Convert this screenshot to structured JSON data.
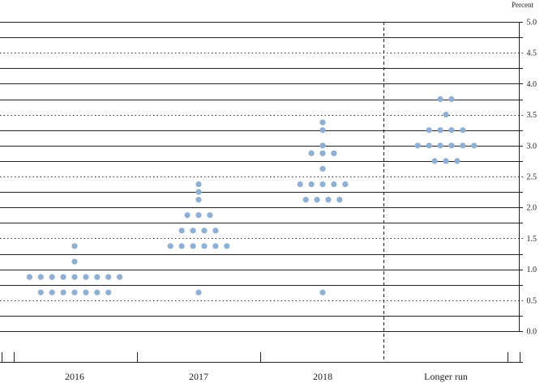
{
  "chart_data": {
    "type": "scatter",
    "title": "",
    "unit_label": "Percent",
    "categories": [
      "2016",
      "2017",
      "2018",
      "Longer run"
    ],
    "ylim": [
      0,
      5.0
    ],
    "yticks": [
      "0.0",
      "0.5",
      "1.0",
      "1.5",
      "2.0",
      "2.5",
      "3.0",
      "3.5",
      "4.0",
      "4.5",
      "5.0"
    ],
    "grid_minor_step": 0.25,
    "grid": true,
    "dot_color": "#8fb0d3",
    "series": [
      {
        "category": "2016",
        "points": [
          {
            "y": 0.625,
            "count": 7
          },
          {
            "y": 0.875,
            "count": 9
          },
          {
            "y": 1.125,
            "count": 1
          },
          {
            "y": 1.375,
            "count": 1
          }
        ]
      },
      {
        "category": "2017",
        "points": [
          {
            "y": 0.625,
            "count": 1
          },
          {
            "y": 1.375,
            "count": 6
          },
          {
            "y": 1.625,
            "count": 4
          },
          {
            "y": 1.875,
            "count": 3
          },
          {
            "y": 2.125,
            "count": 1
          },
          {
            "y": 2.25,
            "count": 1
          },
          {
            "y": 2.375,
            "count": 1
          }
        ]
      },
      {
        "category": "2018",
        "points": [
          {
            "y": 0.625,
            "count": 1
          },
          {
            "y": 2.125,
            "count": 4
          },
          {
            "y": 2.375,
            "count": 5
          },
          {
            "y": 2.625,
            "count": 1
          },
          {
            "y": 2.875,
            "count": 3
          },
          {
            "y": 3.0,
            "count": 1
          },
          {
            "y": 3.25,
            "count": 1
          },
          {
            "y": 3.375,
            "count": 1
          }
        ]
      },
      {
        "category": "Longer run",
        "points": [
          {
            "y": 2.75,
            "count": 3
          },
          {
            "y": 3.0,
            "count": 6
          },
          {
            "y": 3.25,
            "count": 4
          },
          {
            "y": 3.5,
            "count": 1
          },
          {
            "y": 3.75,
            "count": 2
          }
        ]
      }
    ]
  }
}
